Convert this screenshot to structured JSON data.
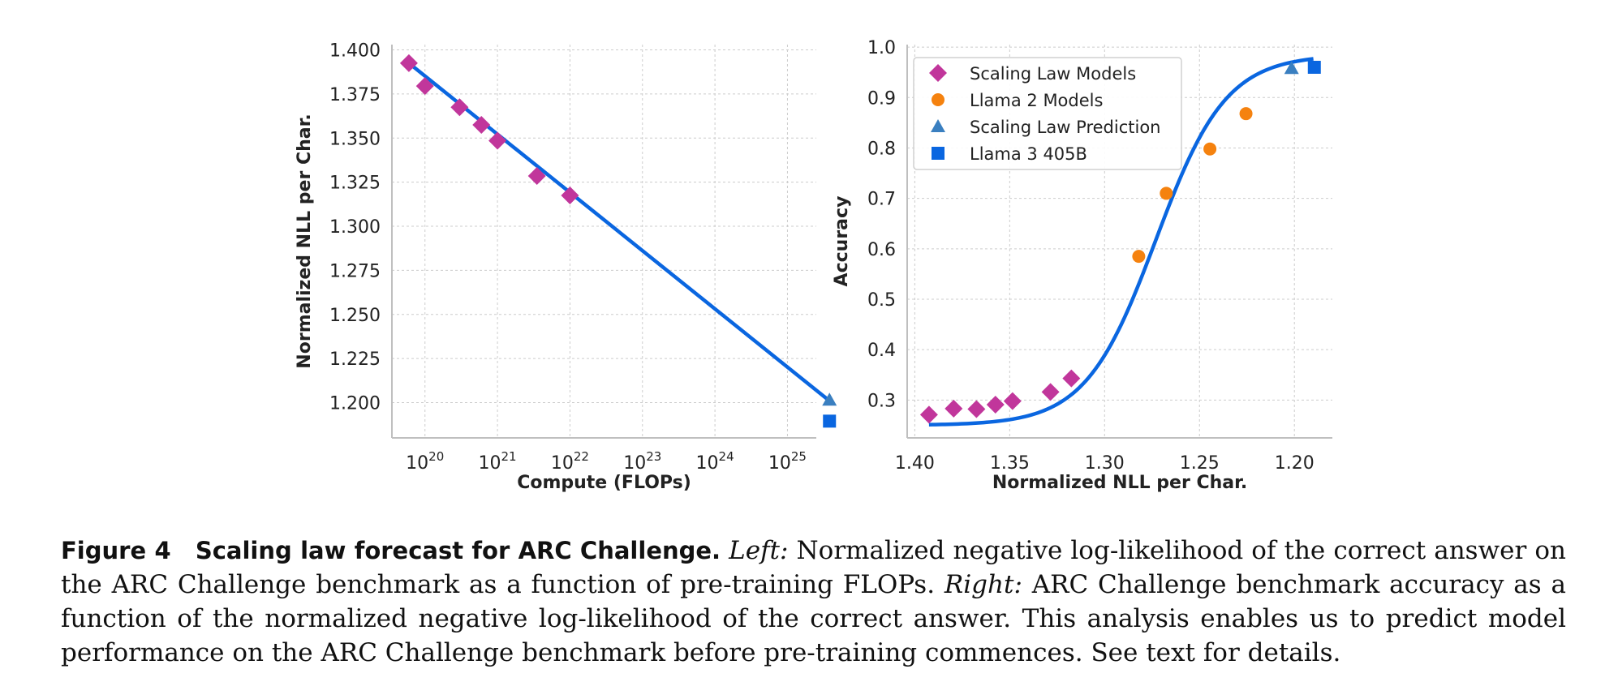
{
  "colors": {
    "fit_line": "#0a66e0",
    "scaling_law_models": "#c1369b",
    "llama2_models": "#f5820f",
    "scaling_law_prediction": "#3a7fc0",
    "llama3_405b": "#0a66e0",
    "grid": "#cccccc",
    "spine": "#bfbfbf"
  },
  "chart_data": [
    {
      "type": "scatter",
      "xlabel": "Compute (FLOPs)",
      "ylabel": "Normalized NLL per Char.",
      "x_scale": "log",
      "xlim": [
        3.5e+19,
        2.5e+25
      ],
      "ylim": [
        1.18,
        1.403
      ],
      "x_ticks": [
        1e+20,
        1e+21,
        1e+22,
        1e+23,
        1e+24,
        1e+25
      ],
      "x_tick_labels": [
        [
          "10",
          "20"
        ],
        [
          "10",
          "21"
        ],
        [
          "10",
          "22"
        ],
        [
          "10",
          "23"
        ],
        [
          "10",
          "24"
        ],
        [
          "10",
          "25"
        ]
      ],
      "y_ticks": [
        1.2,
        1.225,
        1.25,
        1.275,
        1.3,
        1.325,
        1.35,
        1.375,
        1.4
      ],
      "y_tick_labels": [
        "1.200",
        "1.225",
        "1.250",
        "1.275",
        "1.300",
        "1.325",
        "1.350",
        "1.375",
        "1.400"
      ],
      "grid": true,
      "fit_line": {
        "x": [
          6e+19,
          3.8e+25
        ],
        "y": [
          1.3925,
          1.201
        ]
      },
      "series": [
        {
          "marker": "diamond",
          "x": [
            6e+19,
            1e+20,
            3e+20,
            6e+20,
            1e+21,
            3.5e+21,
            1e+22
          ],
          "y": [
            1.3925,
            1.3795,
            1.3675,
            1.3575,
            1.3485,
            1.3285,
            1.3175
          ]
        },
        {
          "marker": "triangle",
          "x": [
            3.8e+25
          ],
          "y": [
            1.2015
          ]
        },
        {
          "marker": "square",
          "x": [
            3.8e+25
          ],
          "y": [
            1.1895
          ]
        }
      ]
    },
    {
      "type": "scatter",
      "xlabel": "Normalized NLL per Char.",
      "ylabel": "Accuracy",
      "x_inverted": true,
      "xlim": [
        1.404,
        1.18
      ],
      "ylim": [
        0.225,
        1.005
      ],
      "x_ticks": [
        1.4,
        1.35,
        1.3,
        1.25,
        1.2
      ],
      "x_tick_labels": [
        "1.40",
        "1.35",
        "1.30",
        "1.25",
        "1.20"
      ],
      "y_ticks": [
        0.3,
        0.4,
        0.5,
        0.6,
        0.7,
        0.8,
        0.9,
        1.0
      ],
      "y_tick_labels": [
        "0.3",
        "0.4",
        "0.5",
        "0.6",
        "0.7",
        "0.8",
        "0.9",
        "1.0"
      ],
      "grid": true,
      "legend_position": "top-left",
      "fit_curve": {
        "type": "sigmoid",
        "lower": 0.25,
        "upper": 0.985,
        "midpoint": 1.273,
        "scale": 0.0185,
        "x_start": 1.3925,
        "x_end": 1.19
      },
      "series": [
        {
          "name": "Scaling Law Models",
          "marker": "diamond",
          "x": [
            1.3925,
            1.3795,
            1.3675,
            1.3575,
            1.3485,
            1.3285,
            1.3175
          ],
          "y": [
            0.271,
            0.283,
            0.282,
            0.291,
            0.298,
            0.316,
            0.343
          ]
        },
        {
          "name": "Llama 2 Models",
          "marker": "circle",
          "x": [
            1.282,
            1.2675,
            1.2445,
            1.2255
          ],
          "y": [
            0.585,
            0.71,
            0.798,
            0.868
          ]
        },
        {
          "name": "Scaling Law Prediction",
          "marker": "triangle",
          "x": [
            1.2015
          ],
          "y": [
            0.958
          ]
        },
        {
          "name": "Llama 3 405B",
          "marker": "square",
          "x": [
            1.1895
          ],
          "y": [
            0.96
          ]
        }
      ]
    }
  ],
  "caption": {
    "label": "Figure 4",
    "title": "Scaling law forecast for ARC Challenge.",
    "left_label": "Left:",
    "left_text": "Normalized negative log-likelihood of the correct answer on the ARC Challenge benchmark as a function of pre-training FLOPs.",
    "right_label": "Right:",
    "right_text": "ARC Challenge benchmark accuracy as a function of the normalized negative log-likelihood of the correct answer. This analysis enables us to predict model performance on the ARC Challenge benchmark before pre-training commences. See text for details."
  }
}
